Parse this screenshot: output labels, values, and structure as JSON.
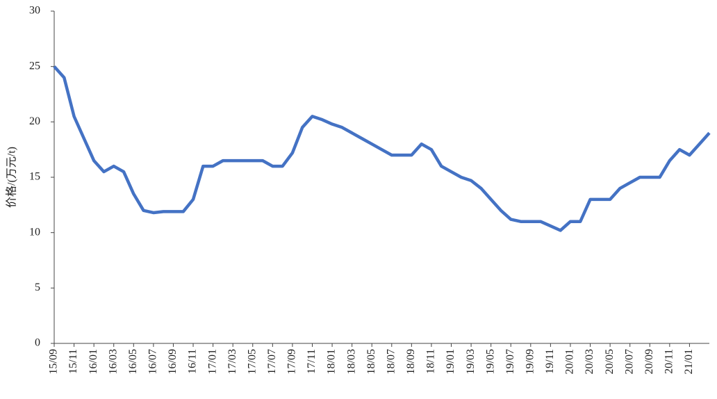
{
  "chart_data": {
    "type": "line",
    "y_label": "价格/(万元/t)",
    "categories": [
      "15/09",
      null,
      "15/11",
      null,
      "16/01",
      null,
      "16/03",
      null,
      "16/05",
      null,
      "16/07",
      null,
      "16/09",
      null,
      "16/11",
      null,
      "17/01",
      null,
      "17/03",
      null,
      "17/05",
      null,
      "17/07",
      null,
      "17/09",
      null,
      "17/11",
      null,
      "18/01",
      null,
      "18/03",
      null,
      "18/05",
      null,
      "18/07",
      null,
      "18/09",
      null,
      "18/11",
      null,
      "19/01",
      null,
      "19/03",
      null,
      "19/05",
      null,
      "19/07",
      null,
      "19/09",
      null,
      "19/11",
      null,
      "20/01",
      null,
      "20/03",
      null,
      "20/05",
      null,
      "20/07",
      null,
      "20/09",
      null,
      "20/11",
      null,
      "21/01",
      null,
      null
    ],
    "series": [
      {
        "color": "#4472c4",
        "values": [
          25,
          24,
          20.5,
          18.5,
          16.5,
          15.5,
          16,
          15.5,
          13.5,
          12,
          11.8,
          11.9,
          11.9,
          11.9,
          13,
          16,
          16,
          16.5,
          16.5,
          16.5,
          16.5,
          16.5,
          16,
          16,
          17.2,
          19.5,
          20.5,
          20.2,
          19.8,
          19.5,
          19,
          18.5,
          18,
          17.5,
          17,
          17,
          17,
          18,
          17.5,
          16,
          15.5,
          15,
          14.7,
          14,
          13,
          12,
          11.2,
          11,
          11,
          11,
          10.6,
          10.2,
          11,
          11,
          13,
          13,
          13,
          14,
          14.5,
          15,
          15,
          15,
          16.5,
          17.5,
          17,
          18,
          19
        ]
      }
    ],
    "ylim": [
      0,
      30
    ],
    "yticks": [
      0,
      5,
      10,
      15,
      20,
      25,
      30
    ],
    "grid": false
  }
}
